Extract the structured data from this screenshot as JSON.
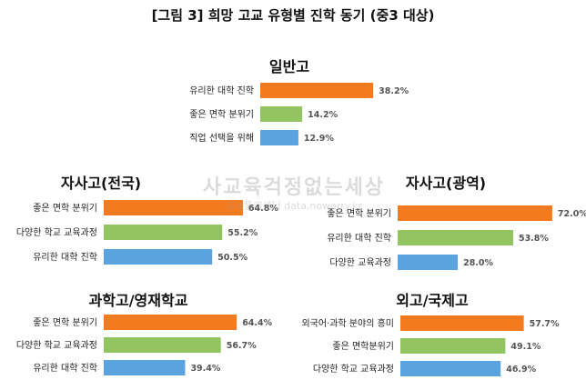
{
  "figure": {
    "title": "[그림 3] 희망 고교 유형별 진학 동기 (중3 대상)",
    "watermark_line1": "사교육걱정없는세상",
    "watermark_line2": "교육통계센터 data.noworry.kr"
  },
  "colors": {
    "orange": "#F47A20",
    "green": "#92C562",
    "blue": "#5BA3DE"
  },
  "chart_data": [
    {
      "type": "bar",
      "orientation": "horizontal",
      "title": "일반고",
      "categories": [
        "유리한 대학 진학",
        "좋은 면학 분위기",
        "직업 선택을 위해"
      ],
      "values": [
        38.2,
        14.2,
        12.9
      ],
      "value_labels": [
        "38.2%",
        "14.2%",
        "12.9%"
      ],
      "bar_colors": [
        "orange",
        "green",
        "blue"
      ],
      "xlim": [
        0,
        100
      ]
    },
    {
      "type": "bar",
      "orientation": "horizontal",
      "title": "자사고(전국)",
      "categories": [
        "좋은 면학 분위기",
        "다양한 학교 교육과정",
        "유리한 대학 진학"
      ],
      "values": [
        64.8,
        55.2,
        50.5
      ],
      "value_labels": [
        "64.8%",
        "55.2%",
        "50.5%"
      ],
      "bar_colors": [
        "orange",
        "green",
        "blue"
      ],
      "xlim": [
        0,
        100
      ]
    },
    {
      "type": "bar",
      "orientation": "horizontal",
      "title": "자사고(광역)",
      "categories": [
        "좋은 면학 분위기",
        "유리한 대학 진학",
        "다양한 교육과정"
      ],
      "values": [
        72.0,
        53.8,
        28.0
      ],
      "value_labels": [
        "72.0%",
        "53.8%",
        "28.0%"
      ],
      "bar_colors": [
        "orange",
        "green",
        "blue"
      ],
      "xlim": [
        0,
        100
      ]
    },
    {
      "type": "bar",
      "orientation": "horizontal",
      "title": "과학고/영재학교",
      "categories": [
        "좋은 면학 분위기",
        "다양한 학교 교육과정",
        "유리한 대학 진학"
      ],
      "values": [
        64.4,
        56.7,
        39.4
      ],
      "value_labels": [
        "64.4%",
        "56.7%",
        "39.4%"
      ],
      "bar_colors": [
        "orange",
        "green",
        "blue"
      ],
      "xlim": [
        0,
        100
      ]
    },
    {
      "type": "bar",
      "orientation": "horizontal",
      "title": "외고/국제고",
      "categories": [
        "외국어·과학 분야의 흥미",
        "좋은 면학분위기",
        "다양한 학교 교육과정"
      ],
      "values": [
        57.7,
        49.1,
        46.9
      ],
      "value_labels": [
        "57.7%",
        "49.1%",
        "46.9%"
      ],
      "bar_colors": [
        "orange",
        "green",
        "blue"
      ],
      "xlim": [
        0,
        100
      ]
    }
  ]
}
